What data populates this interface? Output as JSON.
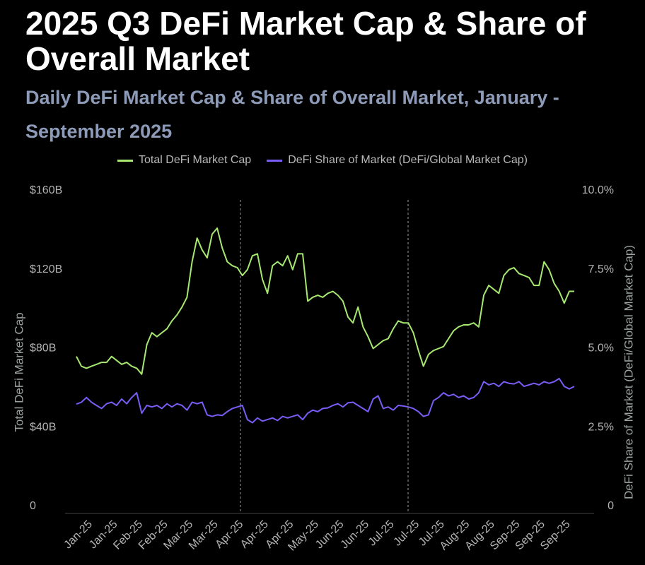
{
  "chart_data": {
    "type": "line",
    "title": "2025 Q3 DeFi Market Cap & Share of Overall Market",
    "subtitle": "Daily DeFi Market Cap & Share of Overall Market, January - September 2025",
    "y_label": "Total DeFi Market Cap",
    "y2_label": "DeFi Share of Market (DeFi/Global Market Cap)",
    "categories": [
      null,
      null,
      "Jan-25",
      null,
      null,
      null,
      null,
      "Jan-25",
      null,
      null,
      null,
      null,
      "Feb-25",
      null,
      null,
      null,
      null,
      "Feb-25",
      null,
      null,
      null,
      null,
      "Mar-25",
      null,
      null,
      null,
      null,
      "Mar-25",
      null,
      null,
      null,
      null,
      "Apr-25",
      null,
      null,
      null,
      null,
      "Apr-25",
      null,
      null,
      null,
      null,
      "Apr-25",
      null,
      null,
      null,
      null,
      "May-25",
      null,
      null,
      null,
      null,
      "Jun-25",
      null,
      null,
      null,
      null,
      "Jun-25",
      null,
      null,
      null,
      null,
      "Jul-25",
      null,
      null,
      null,
      null,
      "Jul-25",
      null,
      null,
      null,
      null,
      "Jul-25",
      null,
      null,
      null,
      null,
      "Aug-25",
      null,
      null,
      null,
      null,
      "Aug-25",
      null,
      null,
      null,
      null,
      "Sep-25",
      null,
      null,
      null,
      null,
      "Sep-25",
      null,
      null,
      null,
      null,
      "Sep-25",
      null,
      null
    ],
    "series": [
      {
        "name": "Total DeFi Market Cap",
        "color": "#a6e870",
        "values": [
          76,
          71,
          70,
          71,
          72,
          73,
          73,
          76,
          74,
          72,
          73,
          71,
          70,
          67,
          82,
          88,
          86,
          88,
          90,
          94,
          97,
          101,
          106,
          124,
          136,
          130,
          126,
          138,
          141,
          131,
          124,
          122,
          121,
          117,
          120,
          127,
          128,
          115,
          108,
          122,
          124,
          122,
          127,
          120,
          128,
          128,
          104,
          106,
          107,
          106,
          108,
          109,
          107,
          104,
          96,
          93,
          101,
          91,
          86,
          80,
          82,
          84,
          85,
          90,
          94,
          93,
          93,
          88,
          79,
          71,
          77,
          79,
          80,
          81,
          85,
          89,
          91,
          92,
          92,
          93,
          91,
          107,
          112,
          110,
          108,
          117,
          120,
          121,
          118,
          117,
          116,
          112,
          112,
          124,
          120,
          113,
          109,
          103,
          109,
          109
        ]
      },
      {
        "name": "DeFi Share of Market (DeFi/Global Market Cap)",
        "color": "#7a5cf6",
        "axis": "y2",
        "values": [
          3.24,
          3.3,
          3.45,
          3.3,
          3.2,
          3.1,
          3.25,
          3.3,
          3.2,
          3.4,
          3.25,
          3.45,
          3.6,
          2.95,
          3.2,
          3.15,
          3.2,
          3.1,
          3.25,
          3.15,
          3.25,
          3.2,
          3.05,
          3.3,
          3.25,
          3.3,
          2.9,
          2.85,
          2.9,
          2.88,
          3.0,
          3.1,
          3.15,
          3.2,
          2.75,
          2.65,
          2.8,
          2.7,
          2.75,
          2.8,
          2.72,
          2.85,
          2.8,
          2.85,
          2.9,
          2.75,
          2.95,
          3.05,
          3.0,
          3.1,
          3.12,
          3.2,
          3.25,
          3.15,
          3.28,
          3.3,
          3.2,
          3.1,
          3.0,
          3.4,
          3.5,
          3.1,
          3.15,
          3.05,
          3.2,
          3.18,
          3.15,
          3.1,
          3.0,
          2.85,
          2.9,
          3.35,
          3.45,
          3.6,
          3.5,
          3.55,
          3.45,
          3.5,
          3.4,
          3.45,
          3.6,
          3.95,
          3.85,
          3.9,
          3.8,
          3.95,
          3.9,
          3.88,
          3.95,
          3.8,
          3.85,
          3.9,
          3.85,
          3.95,
          3.9,
          3.95,
          4.05,
          3.8,
          3.72,
          3.8
        ]
      }
    ],
    "ylim": [
      0,
      160
    ],
    "yticks": [
      0,
      {
        "value": 40,
        "label": "$40B"
      },
      {
        "value": 80,
        "label": "$80B"
      },
      {
        "value": 120,
        "label": "$120B"
      },
      {
        "value": 160,
        "label": "$160B"
      }
    ],
    "y2lim": [
      0,
      10
    ],
    "y2ticks": [
      0,
      {
        "value": 2.5,
        "label": "2.5%"
      },
      {
        "value": 5,
        "label": "5.0%"
      },
      {
        "value": 7.5,
        "label": "7.5%"
      },
      {
        "value": 10,
        "label": "10.0%"
      }
    ],
    "legend": "top"
  }
}
